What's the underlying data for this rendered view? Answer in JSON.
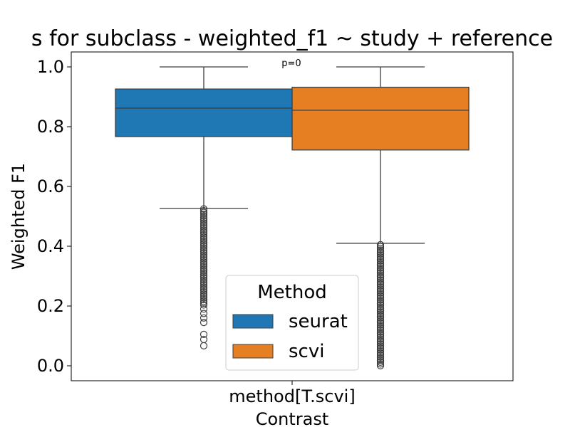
{
  "chart_data": {
    "type": "box",
    "title": "s for subclass - weighted_f1 ~ study + reference",
    "xlabel": "Contrast",
    "ylabel": "Weighted F1",
    "ylim": [
      -0.05,
      1.05
    ],
    "yticks": [
      0.0,
      0.2,
      0.4,
      0.6,
      0.8,
      1.0
    ],
    "ytick_labels": [
      "0.0",
      "0.2",
      "0.4",
      "0.6",
      "0.8",
      "1.0"
    ],
    "categories": [
      "method[T.scvi]"
    ],
    "annotation": "p=0",
    "legend": {
      "title": "Method",
      "placement": "lower-center"
    },
    "grid": false,
    "series": [
      {
        "name": "seurat",
        "color": "#1f77b4",
        "q1": 0.767,
        "median": 0.862,
        "q3": 0.926,
        "whisker_low": 0.527,
        "whisker_high": 1.0,
        "outlier_dense_range": [
          0.2,
          0.525
        ],
        "outliers_sparse": [
          0.19,
          0.175,
          0.16,
          0.145,
          0.105,
          0.088,
          0.067
        ]
      },
      {
        "name": "scvi",
        "color": "#e67e22",
        "q1": 0.722,
        "median": 0.855,
        "q3": 0.932,
        "whisker_low": 0.41,
        "whisker_high": 1.0,
        "outlier_dense_range": [
          0.0,
          0.405
        ],
        "outliers_sparse": []
      }
    ]
  }
}
